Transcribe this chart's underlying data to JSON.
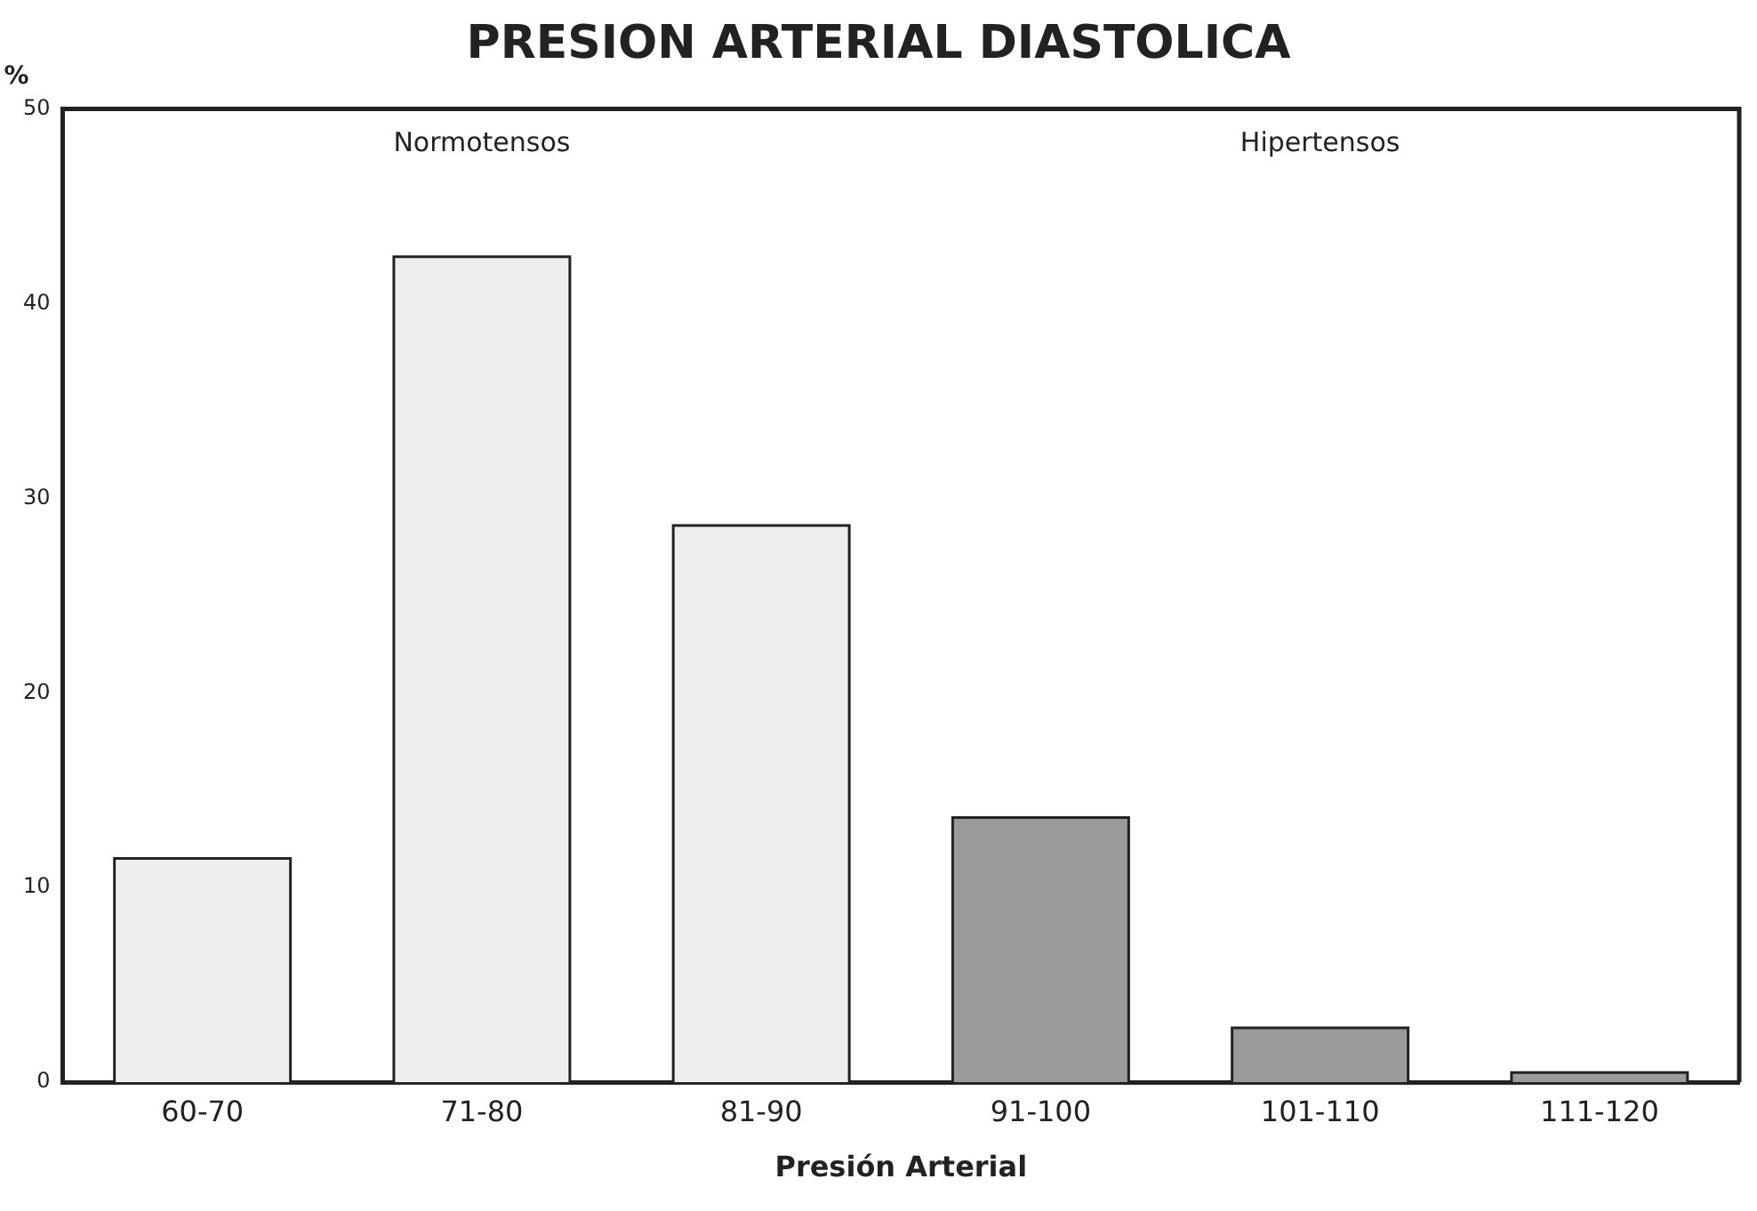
{
  "chart_data": {
    "type": "bar",
    "title": "PRESION ARTERIAL DIASTOLICA",
    "xlabel": "Presión Arterial",
    "ylabel": "%",
    "categories": [
      "60-70",
      "71-80",
      "81-90",
      "91-100",
      "101-110",
      "111-120"
    ],
    "values": [
      11.5,
      42.4,
      28.6,
      13.6,
      2.8,
      0.5
    ],
    "colors": [
      "#eeeeee",
      "#eeeeee",
      "#eeeeee",
      "#9a9a9a",
      "#9a9a9a",
      "#9a9a9a"
    ],
    "ylim": [
      0,
      50
    ],
    "yticks": [
      0,
      10,
      20,
      30,
      40,
      50
    ],
    "grid": false,
    "legend": false,
    "annotations": [
      "Normotensos",
      "Hipertensos"
    ]
  }
}
